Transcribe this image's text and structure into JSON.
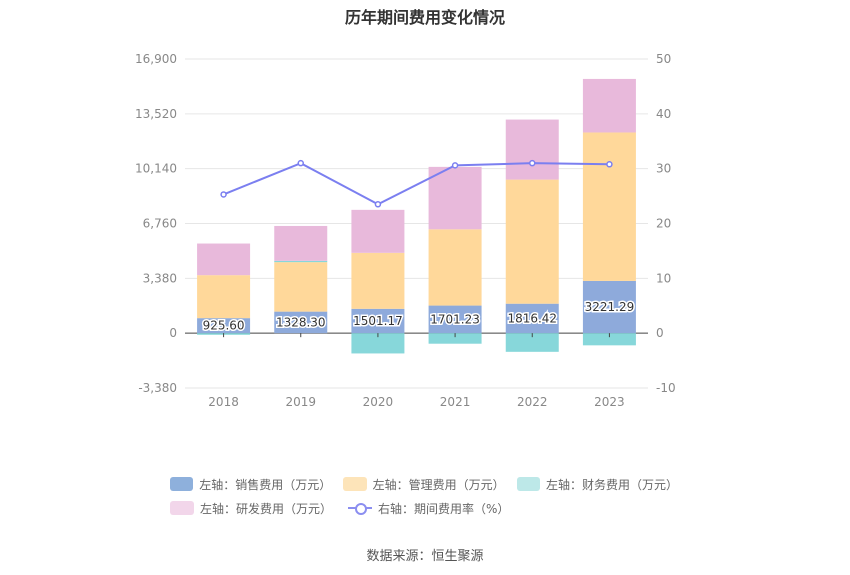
{
  "title": "历年期间费用变化情况",
  "source": "数据来源：恒生聚源",
  "legend": [
    {
      "label": "左轴：销售费用（万元）",
      "color": "#8eb0dc"
    },
    {
      "label": "左轴：管理费用（万元）",
      "color": "#fde4b9"
    },
    {
      "label": "左轴：财务费用（万元）",
      "color": "#bde8e8"
    },
    {
      "label": "左轴：研发费用（万元）",
      "color": "#f2d6ea"
    },
    {
      "label": "右轴：期间费用率（%）",
      "color": "#8b8ef0"
    }
  ],
  "chart_data": {
    "type": "bar",
    "stacked": true,
    "categories": [
      "2018",
      "2019",
      "2020",
      "2021",
      "2022",
      "2023"
    ],
    "left_axis": {
      "ticks": [
        "16,900",
        "13,520",
        "10,140",
        "6,760",
        "3,380",
        "0",
        "-3,380"
      ],
      "min": -3380,
      "max": 16900
    },
    "right_axis": {
      "ticks": [
        "50",
        "40",
        "30",
        "20",
        "10",
        "0",
        "-10"
      ],
      "min": -10,
      "max": 50
    },
    "series": [
      {
        "name": "左轴：销售费用（万元）",
        "axis": "left",
        "color": "#8eaadb",
        "values": [
          925.6,
          1328.3,
          1501.17,
          1701.23,
          1816.42,
          3221.29
        ],
        "labels": [
          "925.60",
          "1328.30",
          "1501.17",
          "1701.23",
          "1816.42",
          "3221.29"
        ]
      },
      {
        "name": "左轴：管理费用（万元）",
        "axis": "left",
        "color": "#ffd89a",
        "values": [
          2650,
          3050,
          3450,
          4700,
          7650,
          9150
        ]
      },
      {
        "name": "左轴：财务费用（万元）",
        "axis": "left",
        "color": "#87d7da",
        "values": [
          -100,
          80,
          -1250,
          -650,
          -1150,
          -750
        ]
      },
      {
        "name": "左轴：研发费用（万元）",
        "axis": "left",
        "color": "#e8b9db",
        "values": [
          1950,
          2150,
          2650,
          3850,
          3700,
          3300
        ]
      },
      {
        "name": "右轴：期间费用率（%）",
        "axis": "right",
        "type": "line",
        "color": "#7b7ff0",
        "values": [
          25.3,
          31.0,
          23.5,
          30.6,
          31.0,
          30.8
        ]
      }
    ],
    "grid": true
  }
}
